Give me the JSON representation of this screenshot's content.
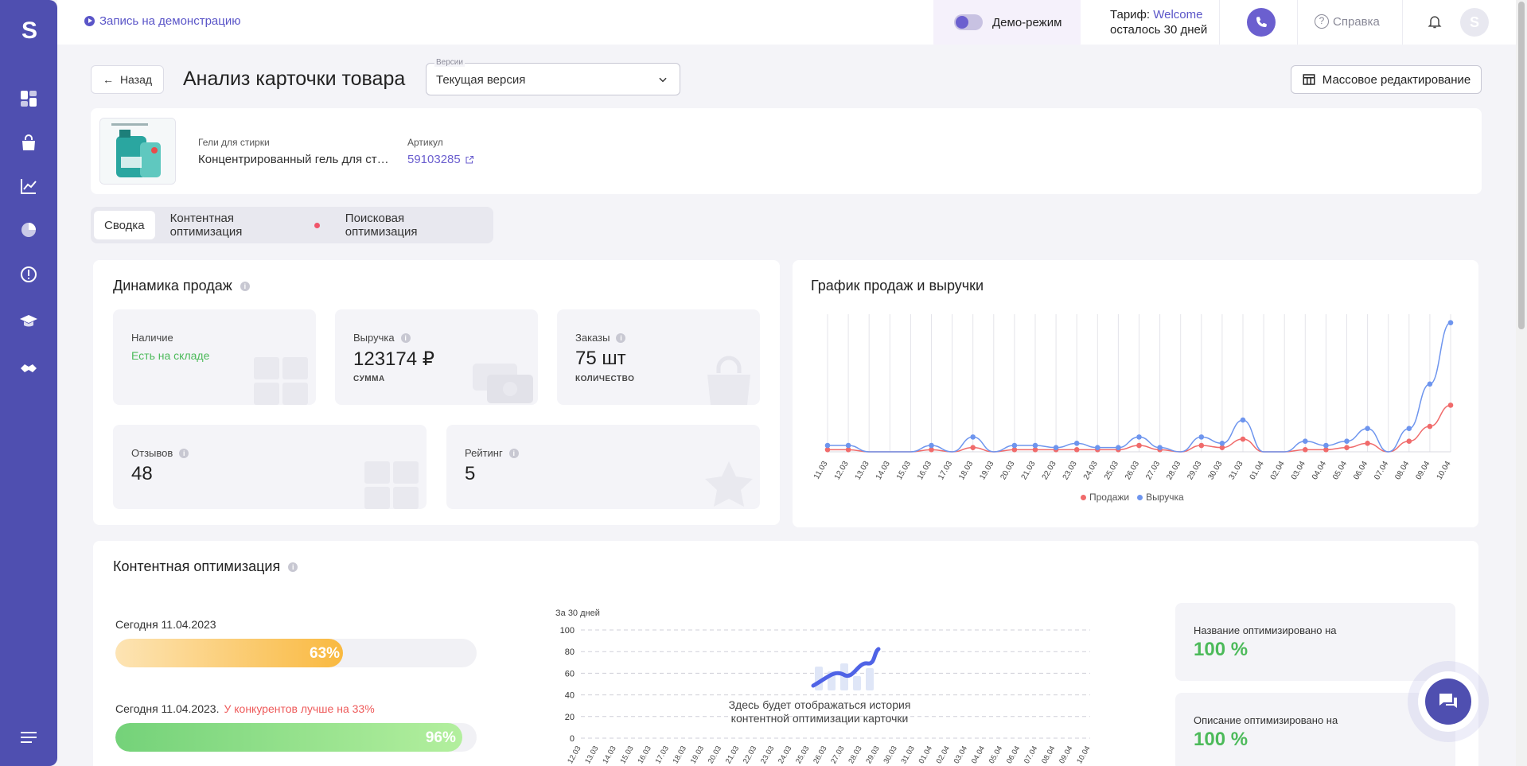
{
  "header": {
    "demo_link": "Запись на демонстрацию",
    "demo_mode": "Демо-режим",
    "tariff_prefix": "Тариф: ",
    "tariff_name": "Welcome",
    "tariff_left": "осталось 30 дней",
    "help": "Справка",
    "avatar_letter": "S"
  },
  "sidebar": {
    "logo": "S",
    "items": [
      "dashboard-icon",
      "bag-icon",
      "analytics-icon",
      "pie-chart-icon",
      "alert-icon",
      "education-icon",
      "handshake-icon",
      "menu-icon"
    ]
  },
  "title_row": {
    "back": "Назад",
    "title": "Анализ карточки товара",
    "version_label": "Версии",
    "version_value": "Текущая версия",
    "mass_edit": "Массовое редактирование"
  },
  "product": {
    "category": "Гели для стирки",
    "name": "Концентрированный гель для стирки",
    "article_label": "Артикул",
    "article": "59103285"
  },
  "tabs": [
    "Сводка",
    "Контентная оптимизация",
    "Поисковая оптимизация"
  ],
  "sales": {
    "title": "Динамика продаж",
    "stock_label": "Наличие",
    "stock_value": "Есть на складе",
    "revenue_label": "Выручка",
    "revenue_value": "123174 ₽",
    "revenue_sub": "СУММА",
    "orders_label": "Заказы",
    "orders_value": "75 шт",
    "orders_sub": "КОЛИЧЕСТВО",
    "reviews_label": "Отзывов",
    "reviews_value": "48",
    "rating_label": "Рейтинг",
    "rating_value": "5"
  },
  "chart_data": [
    {
      "type": "line",
      "title": "График продаж и выручки",
      "categories": [
        "11.03",
        "12.03",
        "13.03",
        "14.03",
        "15.03",
        "16.03",
        "17.03",
        "18.03",
        "19.03",
        "20.03",
        "21.03",
        "22.03",
        "23.03",
        "24.03",
        "25.03",
        "26.03",
        "27.03",
        "28.03",
        "29.03",
        "30.03",
        "31.03",
        "01.04",
        "02.04",
        "03.04",
        "04.04",
        "05.04",
        "06.04",
        "07.04",
        "08.04",
        "09.04",
        "10.04"
      ],
      "series": [
        {
          "name": "Продажи",
          "color": "#f06b6b",
          "values": [
            1,
            1,
            0,
            0,
            0,
            1,
            0,
            2,
            0,
            1,
            1,
            1,
            1,
            1,
            1,
            3,
            1,
            0,
            3,
            2,
            6,
            0,
            0,
            1,
            1,
            2,
            4,
            0,
            5,
            12,
            22
          ]
        },
        {
          "name": "Выручка",
          "color": "#6e95ee",
          "values": [
            3,
            3,
            0,
            0,
            0,
            3,
            0,
            7,
            0,
            3,
            3,
            2,
            4,
            2,
            2,
            7,
            2,
            0,
            7,
            4,
            15,
            0,
            0,
            5,
            3,
            5,
            11,
            0,
            11,
            32,
            61
          ]
        }
      ],
      "legend": "bottom",
      "grid": "vertical"
    },
    {
      "type": "line",
      "title": "За 30 дней",
      "categories": [
        "12.03",
        "13.03",
        "14.03",
        "15.03",
        "16.03",
        "17.03",
        "18.03",
        "19.03",
        "20.03",
        "21.03",
        "22.03",
        "23.03",
        "24.03",
        "25.03",
        "26.03",
        "27.03",
        "28.03",
        "29.03",
        "30.03",
        "31.03",
        "01.04",
        "02.04",
        "03.04",
        "04.04",
        "05.04",
        "06.04",
        "07.04",
        "08.04",
        "09.04",
        "10.04"
      ],
      "yticks": [
        0,
        20,
        40,
        60,
        80,
        100
      ],
      "ylim": [
        0,
        100
      ],
      "series": [],
      "grid": "horizontal-dashed"
    }
  ],
  "content_opt": {
    "title": "Контентная оптимизация",
    "today_label": "Сегодня 11.04.2023",
    "today_pct_value": 63,
    "today_pct": "63%",
    "compet_label": "Сегодня 11.04.2023.",
    "compet_warn": "У конкурентов лучше на 33%",
    "compet_pct_value": 96,
    "compet_pct": "96%",
    "empty_history": "Здесь будет отображаться история контентной оптимизации карточки",
    "name_opt_label": "Название оптимизировано на",
    "name_opt_value": "100 %",
    "desc_opt_label": "Описание оптимизировано на",
    "desc_opt_value": "100 %"
  }
}
